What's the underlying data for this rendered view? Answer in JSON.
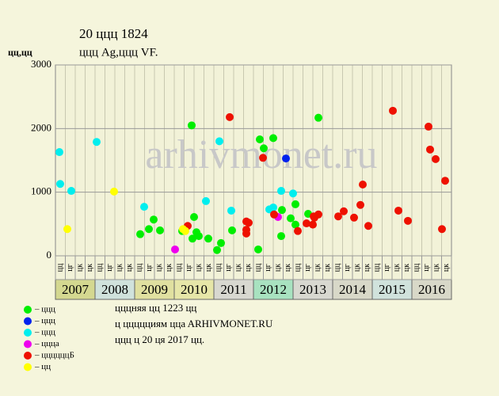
{
  "chart_data": {
    "type": "scatter",
    "title": "20 ццц 1824",
    "subtitle": "ццц Ag,ццц VF.",
    "y_label": "цц,цц",
    "watermark": "arhivmonet.ru",
    "xlim": [
      2007,
      2017
    ],
    "ylim": [
      0,
      3000
    ],
    "yticks": [
      0,
      1000,
      2000,
      3000
    ],
    "grid": true,
    "years": [
      "2007",
      "2008",
      "2009",
      "2010",
      "2011",
      "2012",
      "2013",
      "2014",
      "2015",
      "2016"
    ],
    "quarter_labels": [
      "цц",
      "цг",
      "цк",
      "цк"
    ],
    "series": [
      {
        "name": "– ццц",
        "color": "#00ee00",
        "x": [
          2009.14,
          2009.36,
          2009.48,
          2009.64,
          2010.2,
          2010.44,
          2010.5,
          2010.46,
          2010.56,
          2010.62,
          2010.86,
          2011.08,
          2011.18,
          2011.46,
          2012.12,
          2012.16,
          2012.26,
          2012.5,
          2012.7,
          2012.72,
          2012.94,
          2013.06,
          2013.06,
          2013.38,
          2013.64
        ],
        "values": [
          340,
          420,
          570,
          400,
          390,
          2050,
          610,
          270,
          370,
          310,
          270,
          90,
          200,
          400,
          100,
          1830,
          1690,
          1850,
          310,
          720,
          590,
          810,
          490,
          660,
          2170
        ]
      },
      {
        "name": "– ццц",
        "color": "#0022ee",
        "x": [
          2012.82
        ],
        "values": [
          1530
        ]
      },
      {
        "name": "– ццц",
        "color": "#00eeee",
        "x": [
          2007.1,
          2007.12,
          2007.4,
          2008.04,
          2009.24,
          2010.8,
          2011.14,
          2011.44,
          2012.4,
          2012.5,
          2012.7,
          2013.0
        ],
        "values": [
          1630,
          1130,
          1020,
          1790,
          770,
          860,
          1800,
          710,
          730,
          760,
          1020,
          980
        ]
      },
      {
        "name": "– ццца",
        "color": "#ee00ee",
        "x": [
          2010.02,
          2012.62
        ],
        "values": [
          100,
          610
        ]
      },
      {
        "name": "– ццццццБ",
        "color": "#ee1100",
        "x": [
          2010.34,
          2011.4,
          2011.82,
          2011.88,
          2011.82,
          2011.82,
          2012.24,
          2012.52,
          2013.12,
          2013.34,
          2013.5,
          2013.52,
          2013.64,
          2013.54,
          2014.14,
          2014.28,
          2014.54,
          2014.7,
          2014.76,
          2014.9,
          2015.52,
          2015.66,
          2015.9,
          2016.42,
          2016.46,
          2016.6,
          2016.76,
          2016.84
        ],
        "values": [
          470,
          2180,
          540,
          520,
          410,
          350,
          1540,
          650,
          390,
          510,
          490,
          620,
          650,
          600,
          620,
          700,
          600,
          800,
          1120,
          470,
          2280,
          710,
          550,
          2030,
          1670,
          1520,
          420,
          1180
        ]
      },
      {
        "name": "– цц",
        "color": "#ffff00",
        "x": [
          2007.3,
          2008.48,
          2010.22,
          2010.28
        ],
        "values": [
          420,
          1010,
          420,
          390
        ]
      }
    ],
    "notes": [
      "цццняя цц 1223 цц",
      "ц ццццциям ццa ARHIVMONET.RU",
      "ццц ц 20 ця 2017 цц."
    ]
  }
}
